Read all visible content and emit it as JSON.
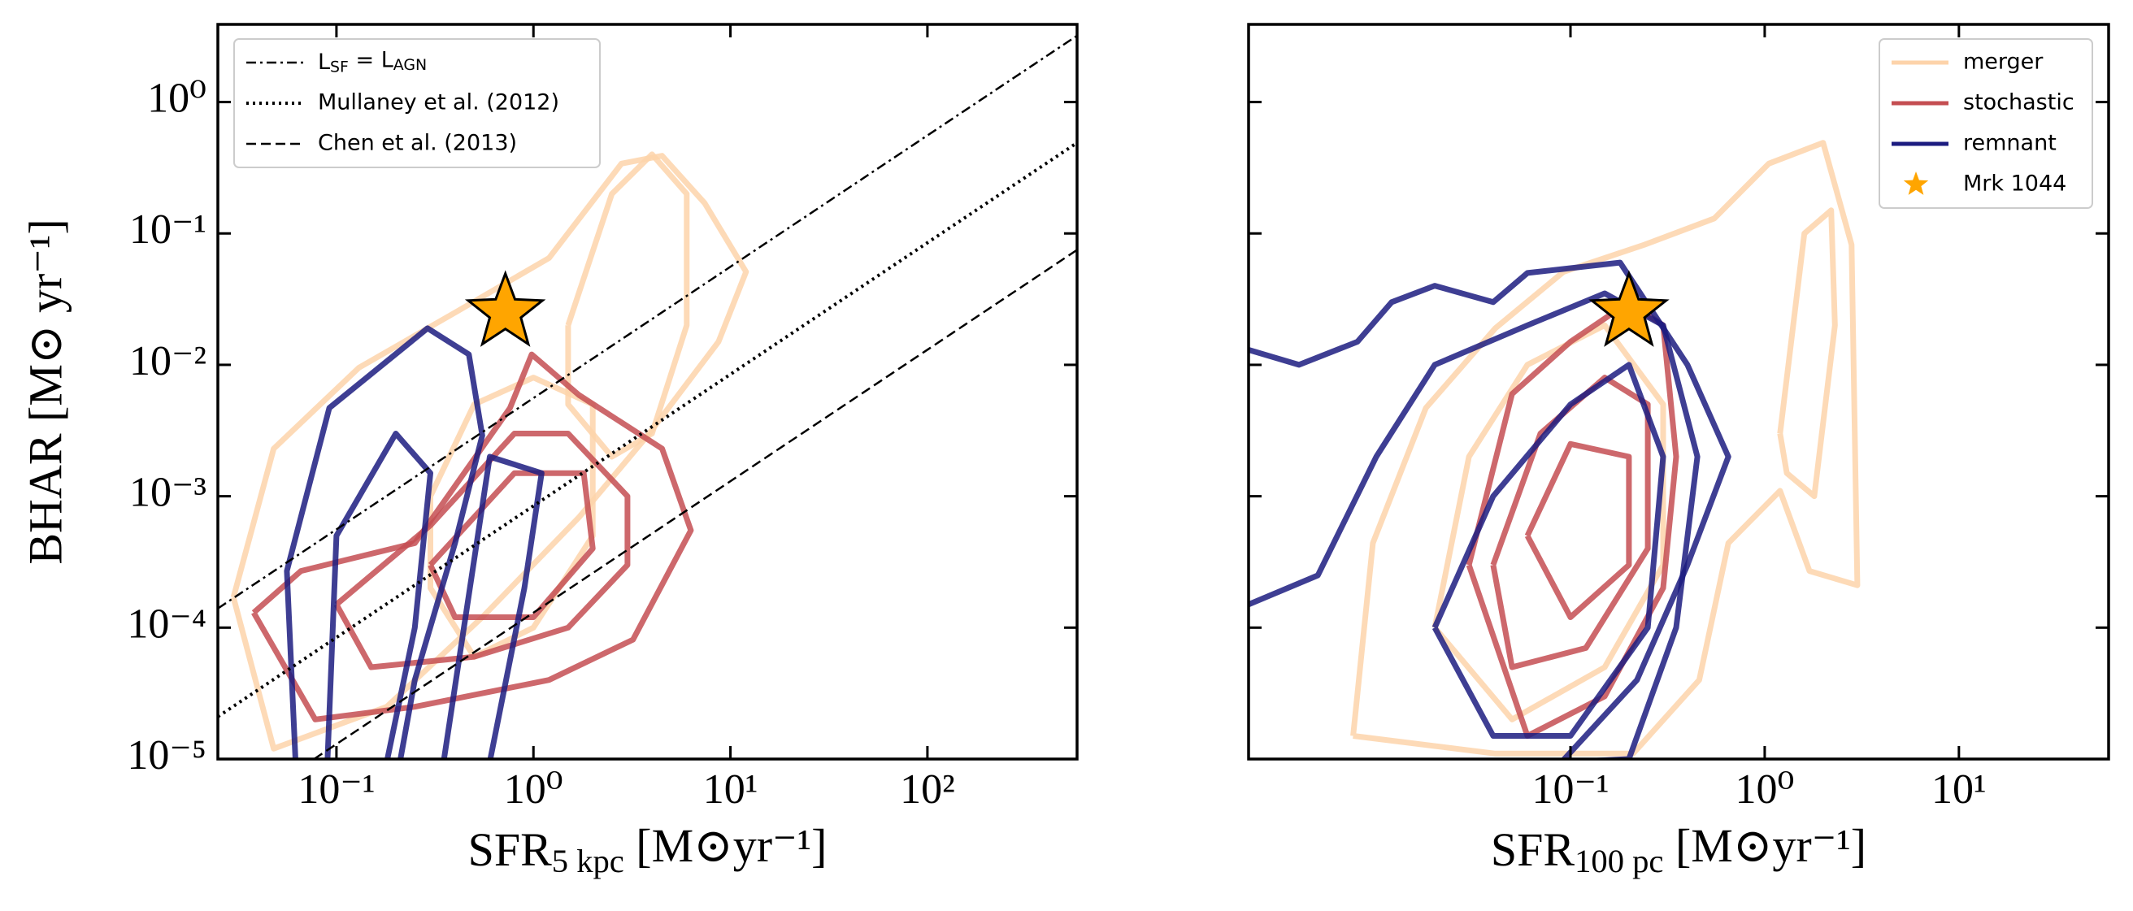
{
  "chart_data": [
    {
      "type": "contour",
      "log_x": true,
      "log_y": true,
      "xlabel": [
        "SFR",
        "5 kpc",
        " [M⊙yr⁻¹]"
      ],
      "ylabel": "BHAR [M⊙ yr⁻¹]",
      "xlim": [
        0.025,
        575
      ],
      "ylim": [
        1e-05,
        3.9
      ],
      "xticks": [
        {
          "value": 0.1,
          "label": "10⁻¹"
        },
        {
          "value": 1,
          "label": "10⁰"
        },
        {
          "value": 10,
          "label": "10¹"
        },
        {
          "value": 100,
          "label": "10²"
        }
      ],
      "yticks": [
        {
          "value": 1e-05,
          "label": "10⁻⁵"
        },
        {
          "value": 0.0001,
          "label": "10⁻⁴"
        },
        {
          "value": 0.001,
          "label": "10⁻³"
        },
        {
          "value": 0.01,
          "label": "10⁻²"
        },
        {
          "value": 0.1,
          "label": "10⁻¹"
        },
        {
          "value": 1,
          "label": "10⁰"
        }
      ],
      "legend": "upper left",
      "series": [
        {
          "color": "#fdd3aa",
          "levels": [
            {
              "x": [
                0.03,
                0.048,
                0.13,
                0.4,
                1.2,
                2.8,
                4.5,
                7.4,
                12,
                8.7,
                3.8,
                1.7,
                0.55,
                0.18,
                0.048,
                0.03
              ],
              "y": [
                0.00017,
                0.0023,
                0.0095,
                0.025,
                0.065,
                0.34,
                0.39,
                0.17,
                0.051,
                0.015,
                0.0029,
                0.00069,
                0.00012,
                2.5e-05,
                1.2e-05,
                0.00017
              ]
            },
            {
              "x": [
                1.5,
                2.5,
                4,
                6,
                6,
                4,
                2.5,
                1.5,
                1.5
              ],
              "y": [
                0.02,
                0.2,
                0.4,
                0.2,
                0.02,
                0.003,
                0.002,
                0.005,
                0.02
              ]
            },
            {
              "x": [
                0.3,
                0.5,
                1,
                2,
                2,
                1,
                0.5,
                0.3,
                0.3
              ],
              "y": [
                0.001,
                0.005,
                0.008,
                0.005,
                0.0005,
                0.0001,
                6e-05,
                0.0002,
                0.001
              ]
            }
          ]
        },
        {
          "color": "#c44e52",
          "levels": [
            {
              "x": [
                0.038,
                0.066,
                0.25,
                0.76,
                0.98,
                1.7,
                4.5,
                6.3,
                3.2,
                1.2,
                0.25,
                0.078,
                0.038
              ],
              "y": [
                0.00013,
                0.00027,
                0.00044,
                0.0047,
                0.012,
                0.0059,
                0.0023,
                0.00055,
                8.1e-05,
                4e-05,
                2.5e-05,
                2e-05,
                0.00013
              ]
            },
            {
              "x": [
                0.1,
                0.3,
                0.8,
                1.5,
                3,
                3,
                1.5,
                0.5,
                0.15,
                0.1
              ],
              "y": [
                0.00015,
                0.0006,
                0.003,
                0.003,
                0.001,
                0.0003,
                0.0001,
                6e-05,
                5e-05,
                0.00015
              ]
            },
            {
              "x": [
                0.3,
                0.8,
                1.8,
                2,
                1,
                0.4,
                0.3
              ],
              "y": [
                0.0003,
                0.0015,
                0.0015,
                0.0004,
                0.00012,
                0.00012,
                0.0003
              ]
            }
          ]
        },
        {
          "color": "#1c1c80",
          "levels": [
            {
              "x": [
                0.062,
                0.056,
                0.092,
                0.29,
                0.47,
                0.55,
                0.4,
                0.25,
                0.21
              ],
              "y": [
                9.5e-06,
                0.00027,
                0.0047,
                0.019,
                0.012,
                0.0029,
                0.00044,
                4e-05,
                9.5e-06
              ]
            },
            {
              "x": [
                0.09,
                0.1,
                0.2,
                0.3,
                0.25,
                0.18
              ],
              "y": [
                9.5e-06,
                0.0005,
                0.003,
                0.0015,
                0.0001,
                9.5e-06
              ]
            },
            {
              "x": [
                0.35,
                0.6,
                1.1,
                0.9,
                0.6
              ],
              "y": [
                9.5e-06,
                0.002,
                0.0015,
                0.0002,
                9.5e-06
              ]
            }
          ]
        }
      ],
      "lines": [
        {
          "name": [
            "L",
            "SF",
            " = L",
            "AGN"
          ],
          "dash": "dashdot",
          "x": [
            0.025,
            575
          ],
          "y": [
            0.00014,
            3.2
          ]
        },
        {
          "name": "Mullaney et al. (2012)",
          "dash": "dotted",
          "x": [
            0.025,
            575
          ],
          "y": [
            2.1e-05,
            0.49
          ]
        },
        {
          "name": "Chen et al. (2013)",
          "dash": "dashed",
          "x": [
            0.077,
            575
          ],
          "y": [
            1e-05,
            0.075
          ]
        }
      ],
      "point": {
        "x": 0.72,
        "y": 0.025,
        "color": "#ffa500"
      }
    },
    {
      "type": "contour",
      "log_x": true,
      "log_y": true,
      "xlabel": [
        "SFR",
        "100 pc",
        " [M⊙yr⁻¹]"
      ],
      "xlim": [
        0.0022,
        59
      ],
      "ylim": [
        1e-05,
        3.9
      ],
      "xticks": [
        {
          "value": 0.1,
          "label": "10⁻¹"
        },
        {
          "value": 1,
          "label": "10⁰"
        },
        {
          "value": 10,
          "label": "10¹"
        }
      ],
      "yticks": [
        1e-05,
        0.0001,
        0.001,
        0.01,
        0.1,
        1
      ],
      "ytick_labels": false,
      "legend": "upper right",
      "series": [
        {
          "name": "merger",
          "color": "#fdd3aa",
          "levels": [
            {
              "x": [
                0.0076,
                0.0096,
                0.018,
                0.041,
                0.092,
                0.24,
                0.55,
                1.05,
                2.0,
                2.8,
                3.0,
                1.7,
                1.2,
                0.65,
                0.46,
                0.21,
                0.041,
                0.0076
              ],
              "y": [
                1.5e-05,
                0.00044,
                0.0047,
                0.019,
                0.051,
                0.082,
                0.13,
                0.34,
                0.49,
                0.082,
                0.00021,
                0.00027,
                0.0011,
                0.00044,
                4e-05,
                1.1e-05,
                1.1e-05,
                1.5e-05
              ]
            },
            {
              "x": [
                1.2,
                1.6,
                2.2,
                2.3,
                1.8,
                1.3,
                1.2
              ],
              "y": [
                0.003,
                0.1,
                0.15,
                0.02,
                0.001,
                0.0015,
                0.003
              ]
            },
            {
              "x": [
                0.02,
                0.03,
                0.06,
                0.15,
                0.3,
                0.3,
                0.15,
                0.05,
                0.02
              ],
              "y": [
                0.0001,
                0.002,
                0.01,
                0.02,
                0.005,
                0.0003,
                5e-05,
                2e-05,
                0.0001
              ]
            }
          ]
        },
        {
          "name": "stochastic",
          "color": "#c44e52",
          "levels": [
            {
              "x": [
                0.03,
                0.05,
                0.1,
                0.2,
                0.3,
                0.35,
                0.3,
                0.15,
                0.06,
                0.03
              ],
              "y": [
                0.0003,
                0.006,
                0.015,
                0.03,
                0.02,
                0.002,
                0.0002,
                3e-05,
                1.5e-05,
                0.0003
              ]
            },
            {
              "x": [
                0.04,
                0.07,
                0.15,
                0.25,
                0.25,
                0.12,
                0.05,
                0.04
              ],
              "y": [
                0.0003,
                0.003,
                0.008,
                0.005,
                0.0004,
                7e-05,
                5e-05,
                0.0003
              ]
            },
            {
              "x": [
                0.06,
                0.1,
                0.2,
                0.2,
                0.1,
                0.06
              ],
              "y": [
                0.0005,
                0.0025,
                0.002,
                0.0003,
                0.00012,
                0.0005
              ]
            }
          ]
        },
        {
          "name": "remnant",
          "color": "#1c1c80",
          "levels": [
            {
              "x": [
                0.0022,
                0.004,
                0.008,
                0.012,
                0.02,
                0.04,
                0.06,
                0.18,
                0.4,
                0.65,
                0.4,
                0.22,
                0.09
              ],
              "y": [
                0.013,
                0.01,
                0.015,
                0.03,
                0.04,
                0.03,
                0.05,
                0.06,
                0.01,
                0.002,
                0.0003,
                4e-05,
                9.5e-06
              ]
            },
            {
              "x": [
                0.0022,
                0.005,
                0.01,
                0.02,
                0.06,
                0.15,
                0.3,
                0.45,
                0.35,
                0.2,
                0.1
              ],
              "y": [
                0.00015,
                0.00025,
                0.002,
                0.01,
                0.02,
                0.035,
                0.02,
                0.002,
                0.0001,
                1e-05,
                9.5e-06
              ]
            },
            {
              "x": [
                0.02,
                0.04,
                0.1,
                0.2,
                0.3,
                0.25,
                0.1,
                0.04,
                0.02
              ],
              "y": [
                0.0001,
                0.001,
                0.005,
                0.01,
                0.002,
                0.0001,
                1.5e-05,
                1.5e-05,
                0.0001
              ]
            }
          ]
        }
      ],
      "point": {
        "name": "Mrk 1044",
        "x": 0.2,
        "y": 0.025,
        "color": "#ffa500"
      }
    }
  ]
}
